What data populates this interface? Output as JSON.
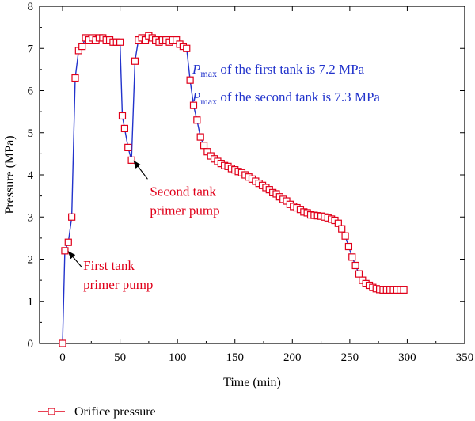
{
  "chart_data": {
    "type": "line",
    "xlabel": "Time (min)",
    "ylabel": "Pressure (MPa)",
    "xlim": [
      -20,
      350
    ],
    "ylim": [
      0,
      8
    ],
    "x_ticks": [
      "0",
      "50",
      "100",
      "150",
      "200",
      "250",
      "300",
      "350"
    ],
    "y_ticks": [
      "0",
      "1",
      "2",
      "3",
      "4",
      "5",
      "6",
      "7",
      "8"
    ],
    "grid": false,
    "legend": {
      "position": "bottom-left",
      "entries": [
        "Orifice pressure"
      ]
    },
    "series": [
      {
        "name": "Orifice pressure",
        "color": "#2233cc",
        "marker": "open-square",
        "marker_color": "#e0001a",
        "points": [
          [
            0,
            0.0
          ],
          [
            2,
            2.2
          ],
          [
            5,
            2.4
          ],
          [
            8,
            3.0
          ],
          [
            11,
            6.3
          ],
          [
            14,
            6.95
          ],
          [
            17,
            7.05
          ],
          [
            20,
            7.25
          ],
          [
            23,
            7.2
          ],
          [
            26,
            7.25
          ],
          [
            29,
            7.2
          ],
          [
            32,
            7.25
          ],
          [
            35,
            7.25
          ],
          [
            38,
            7.2
          ],
          [
            41,
            7.2
          ],
          [
            44,
            7.15
          ],
          [
            47,
            7.15
          ],
          [
            50,
            7.15
          ],
          [
            52,
            5.4
          ],
          [
            54,
            5.1
          ],
          [
            57,
            4.65
          ],
          [
            60,
            4.35
          ],
          [
            63,
            6.7
          ],
          [
            66,
            7.2
          ],
          [
            69,
            7.25
          ],
          [
            72,
            7.2
          ],
          [
            75,
            7.3
          ],
          [
            78,
            7.25
          ],
          [
            81,
            7.2
          ],
          [
            84,
            7.15
          ],
          [
            87,
            7.2
          ],
          [
            90,
            7.2
          ],
          [
            93,
            7.15
          ],
          [
            96,
            7.2
          ],
          [
            99,
            7.2
          ],
          [
            102,
            7.1
          ],
          [
            105,
            7.05
          ],
          [
            108,
            7.0
          ],
          [
            111,
            6.25
          ],
          [
            114,
            5.65
          ],
          [
            117,
            5.3
          ],
          [
            120,
            4.9
          ],
          [
            123,
            4.7
          ],
          [
            126,
            4.55
          ],
          [
            129,
            4.45
          ],
          [
            132,
            4.38
          ],
          [
            135,
            4.32
          ],
          [
            138,
            4.27
          ],
          [
            141,
            4.22
          ],
          [
            144,
            4.2
          ],
          [
            147,
            4.15
          ],
          [
            150,
            4.12
          ],
          [
            153,
            4.08
          ],
          [
            156,
            4.05
          ],
          [
            159,
            4.0
          ],
          [
            162,
            3.95
          ],
          [
            165,
            3.9
          ],
          [
            168,
            3.85
          ],
          [
            171,
            3.8
          ],
          [
            174,
            3.75
          ],
          [
            177,
            3.7
          ],
          [
            180,
            3.65
          ],
          [
            183,
            3.58
          ],
          [
            186,
            3.55
          ],
          [
            189,
            3.48
          ],
          [
            192,
            3.42
          ],
          [
            195,
            3.38
          ],
          [
            198,
            3.3
          ],
          [
            201,
            3.25
          ],
          [
            204,
            3.22
          ],
          [
            207,
            3.18
          ],
          [
            210,
            3.12
          ],
          [
            213,
            3.1
          ],
          [
            216,
            3.05
          ],
          [
            219,
            3.04
          ],
          [
            222,
            3.03
          ],
          [
            225,
            3.02
          ],
          [
            228,
            3.0
          ],
          [
            231,
            2.98
          ],
          [
            234,
            2.95
          ],
          [
            237,
            2.92
          ],
          [
            240,
            2.85
          ],
          [
            243,
            2.72
          ],
          [
            246,
            2.55
          ],
          [
            249,
            2.3
          ],
          [
            252,
            2.05
          ],
          [
            255,
            1.85
          ],
          [
            258,
            1.65
          ],
          [
            261,
            1.5
          ],
          [
            264,
            1.42
          ],
          [
            267,
            1.38
          ],
          [
            270,
            1.33
          ],
          [
            273,
            1.3
          ],
          [
            276,
            1.28
          ],
          [
            279,
            1.27
          ],
          [
            282,
            1.27
          ],
          [
            285,
            1.27
          ],
          [
            288,
            1.27
          ],
          [
            291,
            1.27
          ],
          [
            294,
            1.27
          ],
          [
            297,
            1.27
          ]
        ]
      }
    ],
    "annotations": [
      {
        "lines": [
          "First tank",
          "primer pump"
        ],
        "color": "#e0001a",
        "text_at": [
          18,
          1.75
        ],
        "arrow_from": [
          17,
          1.8
        ],
        "arrow_to": [
          3,
          2.2
        ]
      },
      {
        "lines": [
          "Second tank",
          "primer pump"
        ],
        "color": "#e0001a",
        "text_at": [
          76,
          3.5
        ],
        "arrow_from": [
          74,
          3.9
        ],
        "arrow_to": [
          60,
          4.35
        ]
      },
      {
        "color": "#2233cc",
        "symbol": "P",
        "subscript": "max",
        "text": " of the first tank is 7.2 MPa",
        "text_at": [
          113,
          6.4
        ]
      },
      {
        "color": "#2233cc",
        "symbol": "P",
        "subscript": "max",
        "text": " of the second tank is 7.3 MPa",
        "text_at": [
          113,
          5.75
        ]
      }
    ]
  }
}
